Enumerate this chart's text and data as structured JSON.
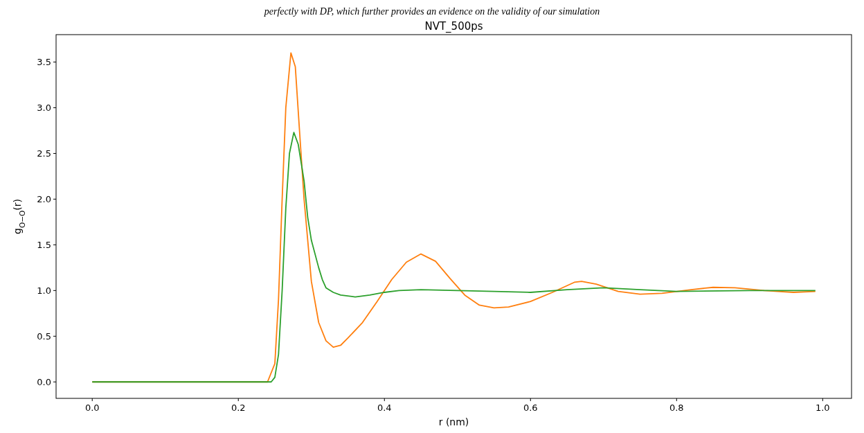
{
  "chart_data": {
    "type": "line",
    "title": "NVT_500ps",
    "xlabel": "r (nm)",
    "ylabel": "g$_{O−O}$(r)",
    "annotations": [
      "perfectly with DP, which further provides an evidence on the validity of our simulation"
    ],
    "xlim": [
      -0.0495,
      1.0395
    ],
    "ylim": [
      -0.18,
      3.8
    ],
    "xticks": [
      {
        "value": 0,
        "label": "0.0"
      },
      0.2,
      0.4,
      0.6,
      0.8,
      {
        "value": 1,
        "label": "1.0"
      }
    ],
    "yticks": [
      {
        "value": 0,
        "label": "0.0"
      },
      0.5,
      {
        "value": 1,
        "label": "1.0"
      },
      1.5,
      {
        "value": 2,
        "label": "2.0"
      },
      2.5,
      {
        "value": 3,
        "label": "3.0"
      },
      3.5
    ],
    "grid": false,
    "series": [
      {
        "color": "#ff7f0e",
        "x": [
          0,
          0.24,
          0.25,
          0.255,
          0.26,
          0.265,
          0.272,
          0.278,
          0.285,
          0.29,
          0.3,
          0.31,
          0.32,
          0.33,
          0.34,
          0.35,
          0.37,
          0.39,
          0.41,
          0.43,
          0.45,
          0.47,
          0.49,
          0.51,
          0.53,
          0.55,
          0.57,
          0.6,
          0.63,
          0.66,
          0.67,
          0.69,
          0.72,
          0.75,
          0.78,
          0.82,
          0.85,
          0.88,
          0.92,
          0.96,
          0.99
        ],
        "values": [
          0,
          0,
          0.2,
          0.9,
          2.0,
          3.0,
          3.6,
          3.45,
          2.6,
          2.0,
          1.1,
          0.65,
          0.45,
          0.38,
          0.4,
          0.48,
          0.65,
          0.88,
          1.12,
          1.31,
          1.4,
          1.32,
          1.13,
          0.95,
          0.84,
          0.81,
          0.82,
          0.88,
          0.98,
          1.09,
          1.1,
          1.07,
          0.99,
          0.96,
          0.97,
          1.01,
          1.035,
          1.03,
          1.0,
          0.98,
          0.99
        ]
      },
      {
        "color": "#2ca02c",
        "x": [
          0,
          0.245,
          0.25,
          0.255,
          0.26,
          0.265,
          0.27,
          0.276,
          0.282,
          0.29,
          0.295,
          0.3,
          0.31,
          0.315,
          0.32,
          0.33,
          0.34,
          0.36,
          0.38,
          0.4,
          0.42,
          0.45,
          0.5,
          0.55,
          0.6,
          0.65,
          0.7,
          0.75,
          0.8,
          0.9,
          0.99
        ],
        "values": [
          0,
          0,
          0.05,
          0.3,
          1.0,
          1.9,
          2.5,
          2.73,
          2.6,
          2.2,
          1.8,
          1.55,
          1.25,
          1.12,
          1.03,
          0.98,
          0.95,
          0.93,
          0.95,
          0.98,
          1.0,
          1.01,
          1.0,
          0.99,
          0.98,
          1.01,
          1.03,
          1.01,
          0.99,
          1.0,
          1.0
        ]
      }
    ]
  }
}
